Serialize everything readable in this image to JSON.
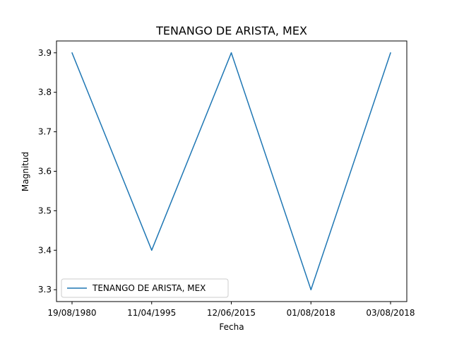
{
  "chart_data": {
    "type": "line",
    "title": "TENANGO DE ARISTA, MEX",
    "xlabel": "Fecha",
    "ylabel": "Magnitud",
    "categories": [
      "19/08/1980",
      "11/04/1995",
      "12/06/2015",
      "01/08/2018",
      "03/08/2018"
    ],
    "series": [
      {
        "name": "TENANGO DE ARISTA, MEX",
        "values": [
          3.9,
          3.4,
          3.9,
          3.3,
          3.9
        ],
        "color": "#1f77b4"
      }
    ],
    "ylim": [
      3.27,
      3.93
    ],
    "yticks": [
      3.3,
      3.4,
      3.5,
      3.6,
      3.7,
      3.8,
      3.9
    ],
    "ytick_labels": [
      "3.3",
      "3.4",
      "3.5",
      "3.6",
      "3.7",
      "3.8",
      "3.9"
    ],
    "grid": false,
    "legend_position": "lower-left"
  }
}
